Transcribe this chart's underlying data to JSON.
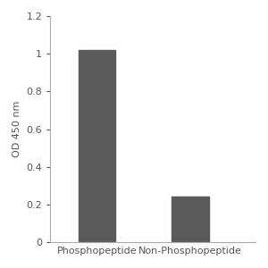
{
  "categories": [
    "Phosphopeptide",
    "Non-Phosphopeptide"
  ],
  "values": [
    1.02,
    0.245
  ],
  "bar_color": "#5a5a5a",
  "bar_width": 0.4,
  "ylabel": "OD 450 nm",
  "ylim": [
    0,
    1.2
  ],
  "yticks": [
    0,
    0.2,
    0.4,
    0.6,
    0.8,
    1.0,
    1.2
  ],
  "ytick_labels": [
    "0",
    "0.2",
    "0.4",
    "0.6",
    "0.8",
    "1",
    "1.2"
  ],
  "background_color": "#ffffff",
  "tick_fontsize": 8,
  "label_fontsize": 8,
  "spine_color": "#aaaaaa",
  "text_color": "#555555"
}
